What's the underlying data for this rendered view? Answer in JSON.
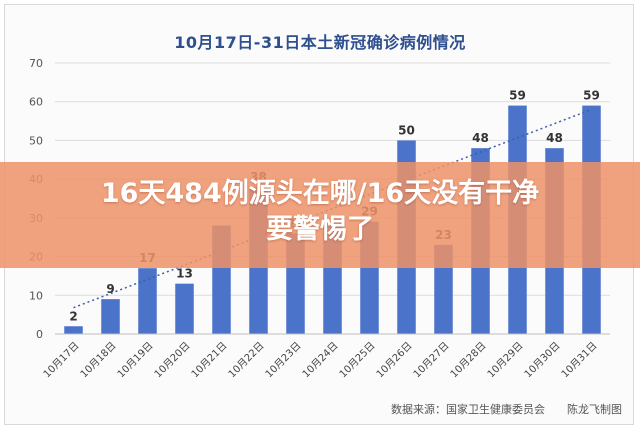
{
  "chart_data": {
    "type": "bar",
    "title": "10月17日-31日本土新冠确诊病例情况",
    "categories": [
      "10月17日",
      "10月18日",
      "10月19日",
      "10月20日",
      "10月21日",
      "10月22日",
      "10月23日",
      "10月24日",
      "10月25日",
      "10月26日",
      "10月27日",
      "10月28日",
      "10月29日",
      "10月30日",
      "10月31日"
    ],
    "values": [
      2,
      9,
      17,
      13,
      28,
      38,
      26,
      29,
      29,
      50,
      23,
      48,
      59,
      48,
      59
    ],
    "data_labels": [
      "2",
      "9",
      "17",
      "13",
      "",
      "38",
      "26",
      "",
      "29",
      "50",
      "23",
      "48",
      "59",
      "48",
      "59"
    ],
    "trendline": {
      "style": "dotted",
      "from": 6.8,
      "to": 58.0
    },
    "yticks": [
      0,
      10,
      20,
      30,
      40,
      50,
      60,
      70
    ],
    "ylim": [
      0,
      70
    ],
    "grid": true,
    "colors": {
      "bar": "#4a73c9",
      "trend": "#3b5ea8",
      "grid": "#dddddd",
      "label": "#333333",
      "title": "#2f4f8f"
    }
  },
  "banner": {
    "line1": "16天484例源头在哪/16天没有干净",
    "line2": "要警惕了",
    "color": "#ee9268"
  },
  "source": "数据来源：国家卫生健康委员会　　陈龙飞制图"
}
